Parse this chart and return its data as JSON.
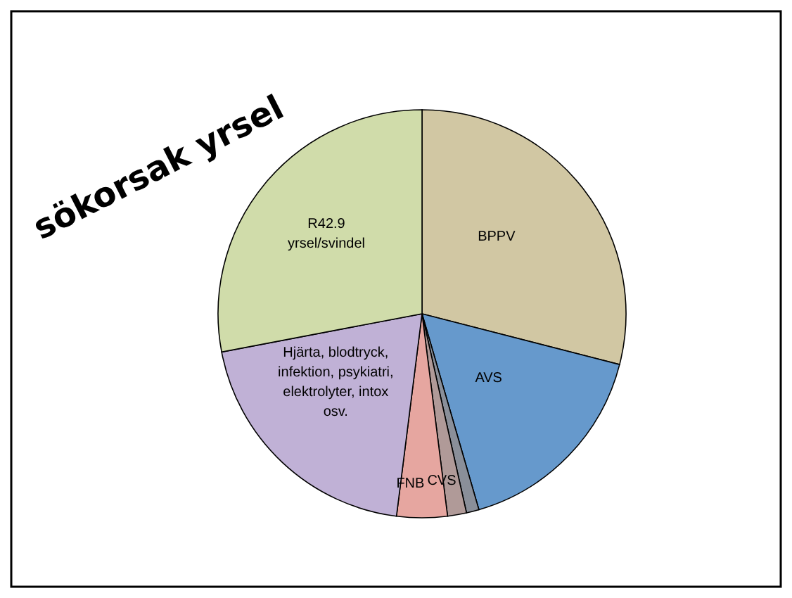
{
  "chart_data": {
    "type": "pie",
    "title": "sökorsak yrsel",
    "categories": [
      "BPPV",
      "AVS",
      null,
      "CVS",
      "FNB",
      "Hjärta, blodtryck,\ninfektion, psykiatri,\nelektrolyter, intox\nosv.",
      "R42.9\nyrsel/svindel"
    ],
    "values": [
      29,
      16.5,
      1,
      1.5,
      4,
      20,
      28
    ],
    "colors": [
      "#d1c7a3",
      "#6699cc",
      "#8a8f99",
      "#b09a98",
      "#e6a6a0",
      "#c0b1d6",
      "#d0dcaa"
    ]
  }
}
